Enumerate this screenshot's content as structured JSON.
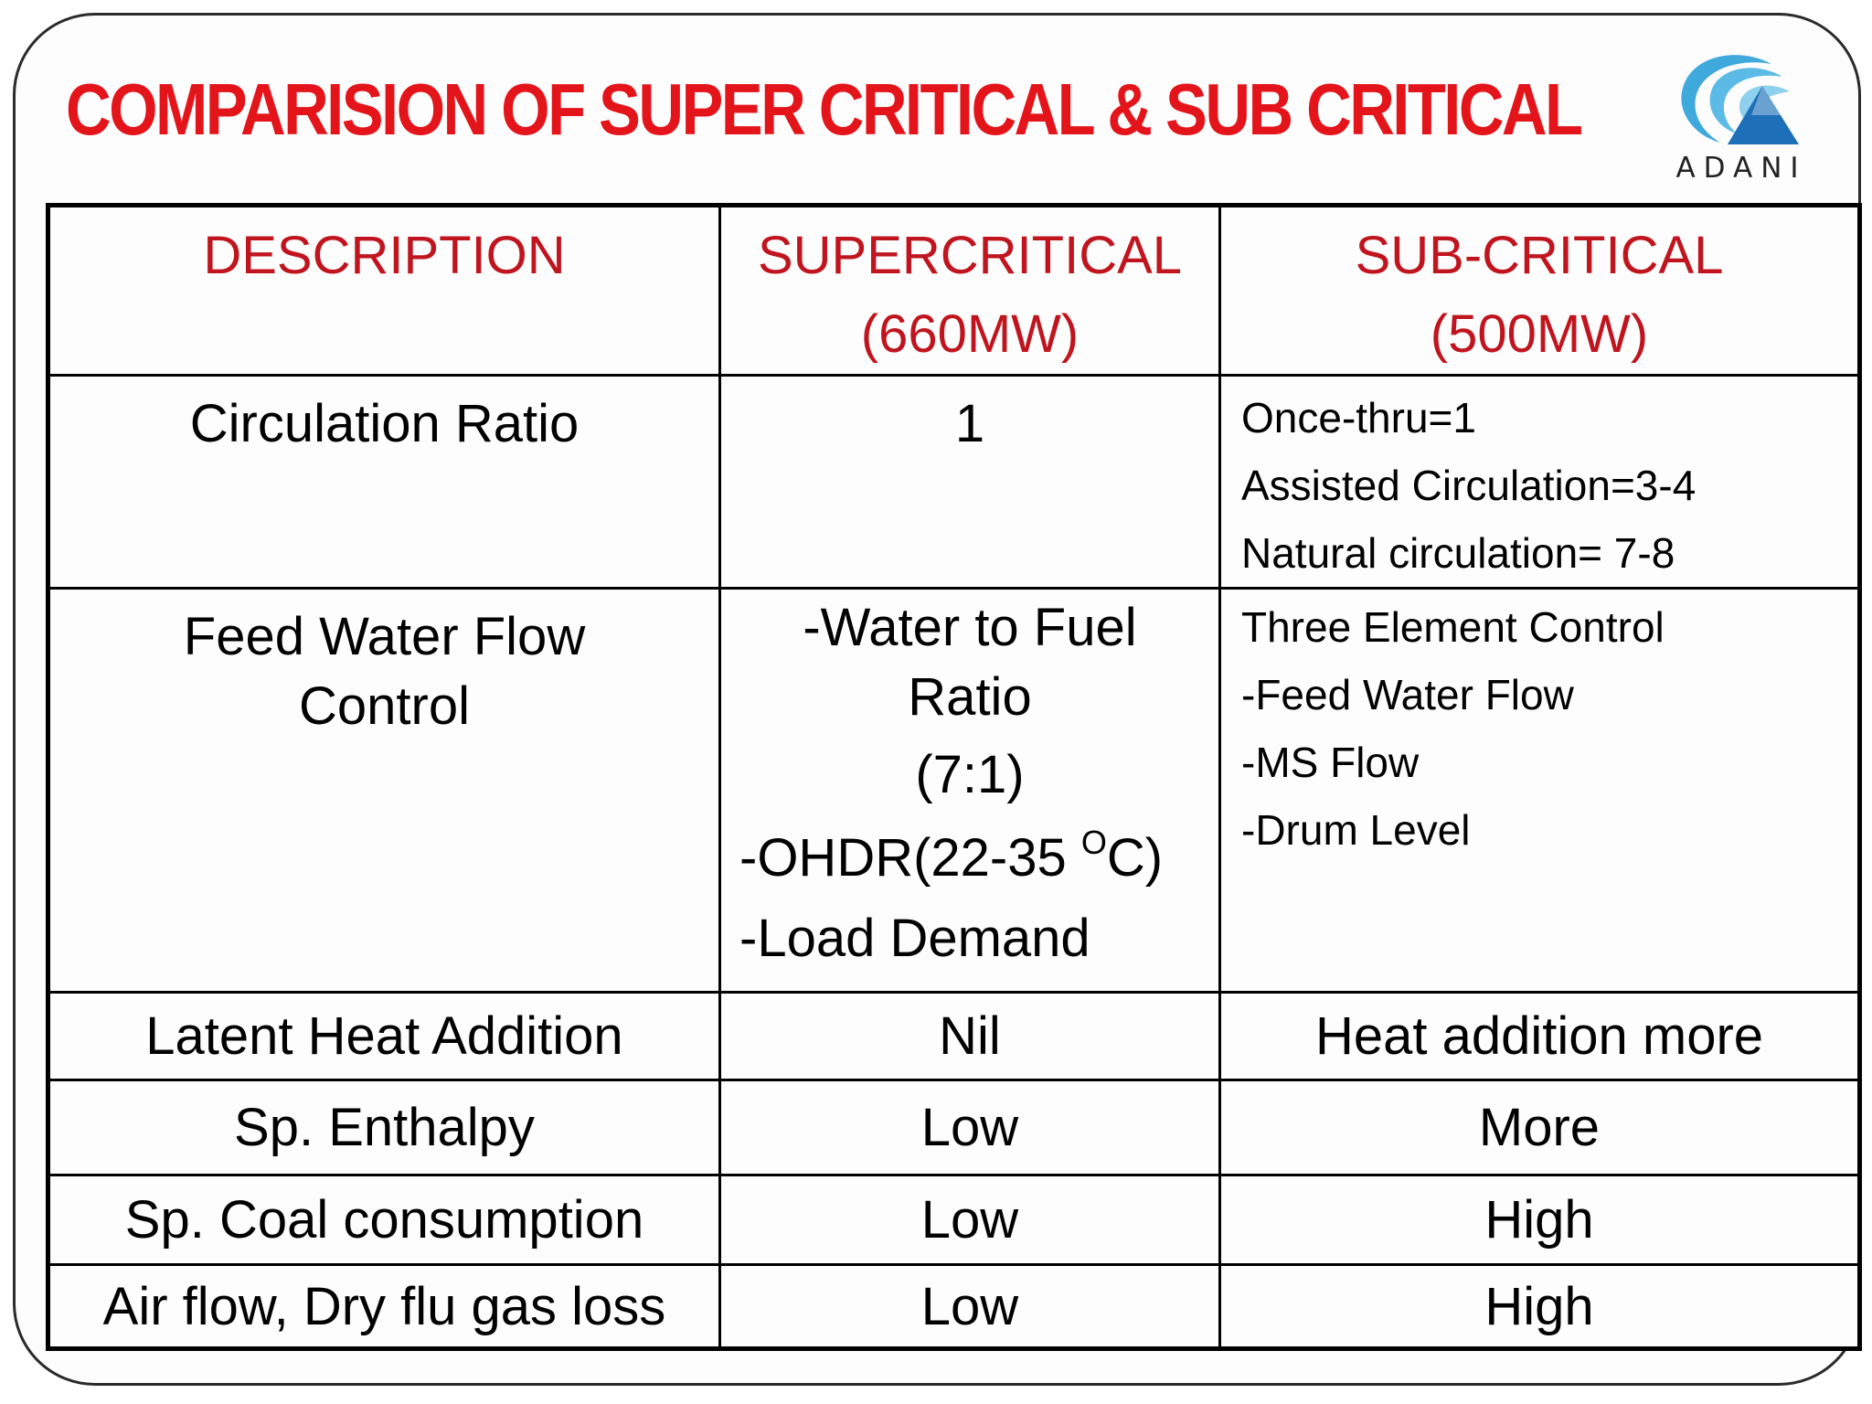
{
  "title": "COMPARISION OF SUPER CRITICAL & SUB CRITICAL",
  "logo": {
    "text": "ADANI",
    "icon": "adani-logo-icon",
    "colors": {
      "swirl": "#3fa9dc",
      "triangle": "#1d6fb8"
    }
  },
  "colors": {
    "title": "#e4141b",
    "header_text": "#c0151e"
  },
  "table": {
    "headers": {
      "description": "DESCRIPTION",
      "supercritical_line1": "SUPERCRITICAL",
      "supercritical_line2": "(660MW)",
      "subcritical_line1": "SUB-CRITICAL",
      "subcritical_line2": "(500MW)"
    },
    "rows": [
      {
        "description": "Circulation Ratio",
        "supercritical": "1",
        "subcritical": [
          "Once-thru=1",
          "Assisted Circulation=3-4",
          "Natural circulation= 7-8"
        ]
      },
      {
        "description_line1": "Feed Water Flow",
        "description_line2": "Control",
        "supercritical": {
          "line1": "-Water to Fuel",
          "line2": "Ratio",
          "line3": "(7:1)",
          "line4_prefix": "-OHDR(22-35 ",
          "line4_sup": "O",
          "line4_suffix": "C)",
          "line5": "-Load Demand"
        },
        "subcritical": [
          "Three Element Control",
          "-Feed Water Flow",
          "-MS Flow",
          "-Drum Level"
        ]
      },
      {
        "description": "Latent Heat Addition",
        "supercritical": "Nil",
        "subcritical": "Heat addition more"
      },
      {
        "description": "Sp. Enthalpy",
        "supercritical": "Low",
        "subcritical": "More"
      },
      {
        "description": "Sp. Coal consumption",
        "supercritical": "Low",
        "subcritical": "High"
      },
      {
        "description": "Air flow, Dry flu gas loss",
        "supercritical": "Low",
        "subcritical": "High"
      }
    ]
  }
}
